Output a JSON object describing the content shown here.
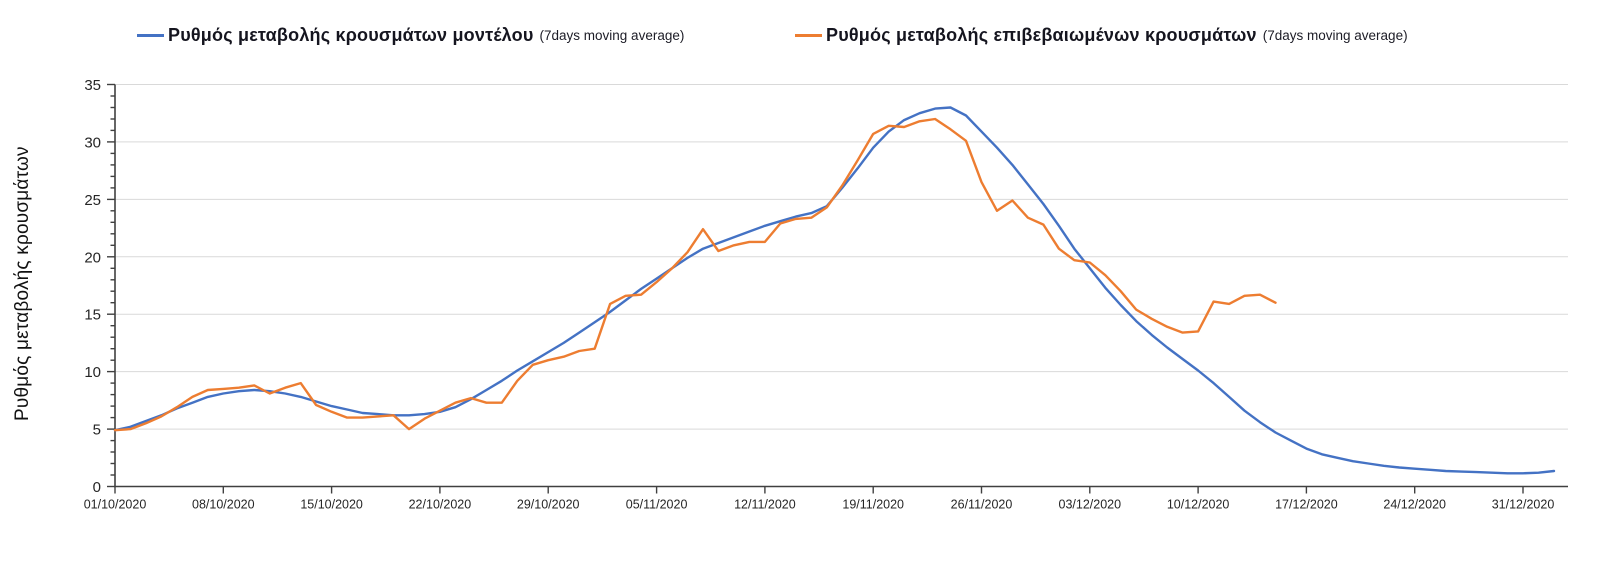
{
  "chart_data": {
    "type": "line",
    "title": "",
    "xlabel": "",
    "ylabel": "Ρυθμός μεταβολής κρουσμάτων",
    "ylim": [
      0,
      35
    ],
    "y_major_ticks": [
      0,
      5,
      10,
      15,
      20,
      25,
      30,
      35
    ],
    "y_minor_tick_step": 1,
    "grid": "horizontal",
    "gridline_color": "#D9D9D9",
    "axis_color": "#404040",
    "tick_label_color": "#262626",
    "legend_position": "top",
    "x_tick_interval_days": 7,
    "x_start_date": "01/10/2020",
    "x_tick_labels": [
      "01/10/2020",
      "08/10/2020",
      "15/10/2020",
      "22/10/2020",
      "29/10/2020",
      "05/11/2020",
      "12/11/2020",
      "19/11/2020",
      "26/11/2020",
      "03/12/2020",
      "10/12/2020",
      "17/12/2020",
      "24/12/2020",
      "31/12/2020"
    ],
    "series": [
      {
        "name": "model",
        "label": "Ρυθμός μεταβολής κρουσμάτων μοντέλου",
        "suffix": "(7days moving average)",
        "color": "#4472C4",
        "values": [
          4.9,
          5.2,
          5.7,
          6.2,
          6.8,
          7.3,
          7.8,
          8.1,
          8.3,
          8.4,
          8.3,
          8.1,
          7.8,
          7.4,
          7.0,
          6.7,
          6.4,
          6.3,
          6.2,
          6.2,
          6.3,
          6.5,
          6.9,
          7.6,
          8.4,
          9.2,
          10.1,
          10.9,
          11.7,
          12.5,
          13.4,
          14.3,
          15.2,
          16.2,
          17.2,
          18.1,
          19.0,
          19.9,
          20.7,
          21.2,
          21.7,
          22.2,
          22.7,
          23.1,
          23.5,
          23.8,
          24.4,
          26.0,
          27.7,
          29.5,
          30.9,
          31.9,
          32.5,
          32.9,
          33.0,
          32.3,
          30.9,
          29.5,
          28.0,
          26.3,
          24.6,
          22.7,
          20.7,
          19.0,
          17.3,
          15.8,
          14.4,
          13.2,
          12.1,
          11.1,
          10.1,
          9.0,
          7.8,
          6.6,
          5.6,
          4.7,
          4.0,
          3.3,
          2.8,
          2.5,
          2.2,
          2.0,
          1.8,
          1.65,
          1.55,
          1.45,
          1.35,
          1.3,
          1.25,
          1.2,
          1.15,
          1.15,
          1.2,
          1.35
        ]
      },
      {
        "name": "confirmed",
        "label": "Ρυθμός μεταβολής επιβεβαιωμένων κρουσμάτων",
        "suffix": "(7days moving average)",
        "color": "#ED7D31",
        "values": [
          4.9,
          5.0,
          5.5,
          6.1,
          6.9,
          7.8,
          8.4,
          8.5,
          8.6,
          8.8,
          8.1,
          8.6,
          9.0,
          7.1,
          6.5,
          6.0,
          6.0,
          6.1,
          6.2,
          5.0,
          5.9,
          6.6,
          7.3,
          7.7,
          7.3,
          7.3,
          9.2,
          10.6,
          11.0,
          11.3,
          11.8,
          12.0,
          15.9,
          16.6,
          16.7,
          17.8,
          19.0,
          20.4,
          22.4,
          20.5,
          21.0,
          21.3,
          21.3,
          22.9,
          23.3,
          23.4,
          24.3,
          26.2,
          28.4,
          30.7,
          31.4,
          31.3,
          31.8,
          32.0,
          31.1,
          30.1,
          26.5,
          24.0,
          24.9,
          23.4,
          22.8,
          20.7,
          19.7,
          19.5,
          18.4,
          17.0,
          15.4,
          14.6,
          13.9,
          13.4,
          13.5,
          16.1,
          15.9,
          16.6,
          16.7,
          16.0
        ]
      }
    ]
  }
}
